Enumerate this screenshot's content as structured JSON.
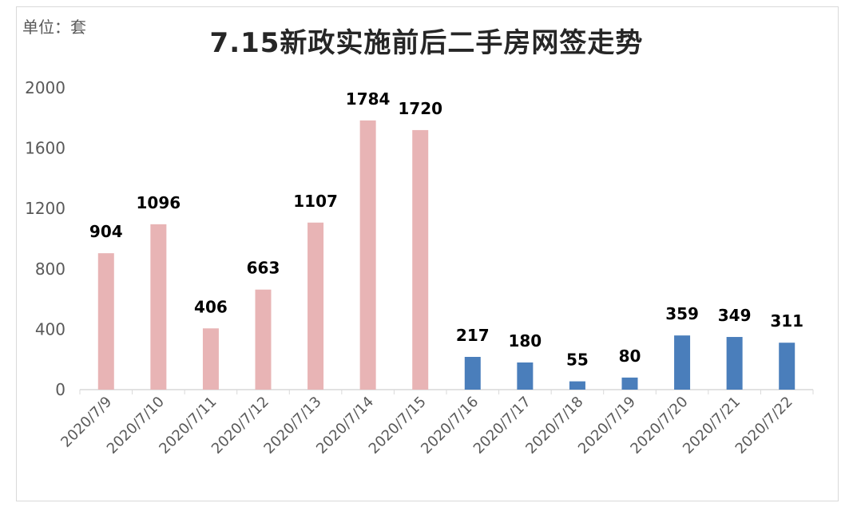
{
  "unit_label": "单位：套",
  "chart_data": {
    "type": "bar",
    "title": "7.15新政实施前后二手房网签走势",
    "xlabel": "",
    "ylabel": "",
    "ylim": [
      0,
      2000
    ],
    "yticks": [
      0,
      400,
      800,
      1200,
      1600,
      2000
    ],
    "categories": [
      "2020/7/9",
      "2020/7/10",
      "2020/7/11",
      "2020/7/12",
      "2020/7/13",
      "2020/7/14",
      "2020/7/15",
      "2020/7/16",
      "2020/7/17",
      "2020/7/18",
      "2020/7/19",
      "2020/7/20",
      "2020/7/21",
      "2020/7/22"
    ],
    "values": [
      904,
      1096,
      406,
      663,
      1107,
      1784,
      1720,
      217,
      180,
      55,
      80,
      359,
      349,
      311
    ],
    "bar_colors": [
      "#e8b4b5",
      "#e8b4b5",
      "#e8b4b5",
      "#e8b4b5",
      "#e8b4b5",
      "#e8b4b5",
      "#e8b4b5",
      "#4a7ebb",
      "#4a7ebb",
      "#4a7ebb",
      "#4a7ebb",
      "#4a7ebb",
      "#4a7ebb",
      "#4a7ebb"
    ],
    "grid": false,
    "legend": "none"
  }
}
